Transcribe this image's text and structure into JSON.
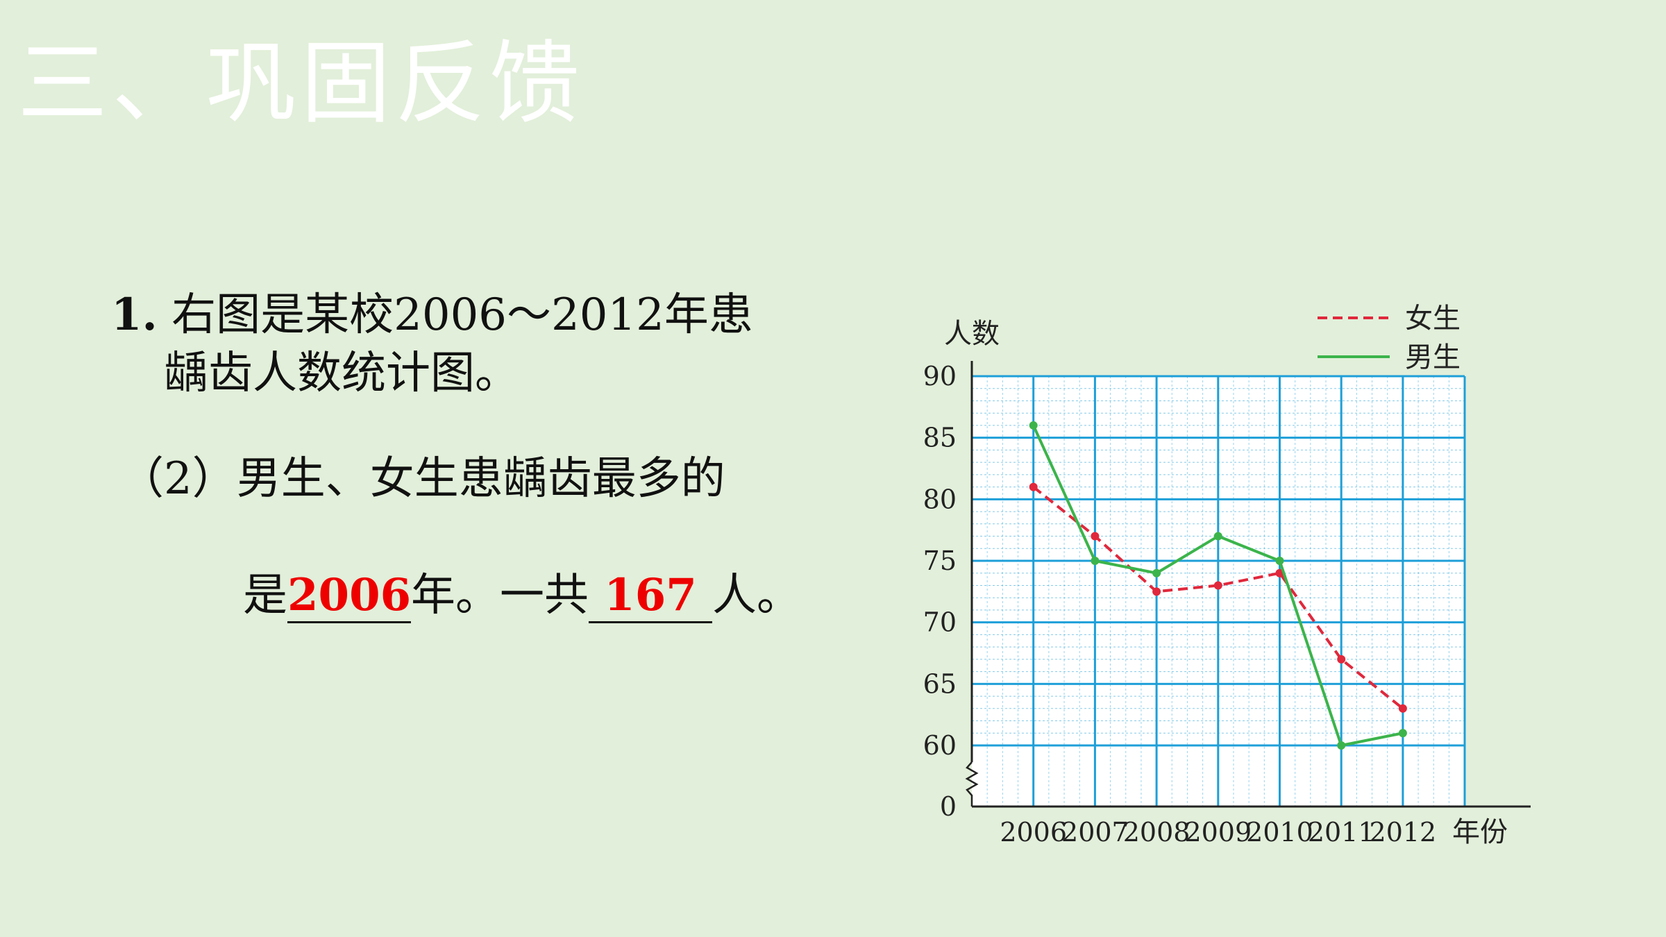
{
  "slide": {
    "title": "三、巩固反馈"
  },
  "question": {
    "number": "1.",
    "line1_text": "右图是某校2006～2012年患",
    "line2_text": "龋齿人数统计图。",
    "sub_line1": "（2）男生、女生患龋齿最多的",
    "sub_prefix": "是",
    "answer1": "2006",
    "sub_mid": "年。一共",
    "answer2": "167",
    "sub_suffix": "人。"
  },
  "chart_data": {
    "type": "line",
    "title": "",
    "xlabel": "年份",
    "ylabel": "人数",
    "categories": [
      "2006",
      "2007",
      "2008",
      "2009",
      "2010",
      "2011",
      "2012"
    ],
    "y_ticks": [
      0,
      60,
      65,
      70,
      75,
      80,
      85,
      90
    ],
    "ylim": [
      60,
      90
    ],
    "y_axis_break": true,
    "grid": true,
    "legend_position": "top-right",
    "series": [
      {
        "name": "女生",
        "style": "dashed",
        "color": "#e0283c",
        "values": [
          81,
          77,
          72.5,
          73,
          74,
          67,
          63
        ]
      },
      {
        "name": "男生",
        "style": "solid",
        "color": "#3cb44b",
        "values": [
          86,
          75,
          74,
          77,
          75,
          60,
          61
        ]
      }
    ],
    "grid_color": "#1e9fd8"
  }
}
